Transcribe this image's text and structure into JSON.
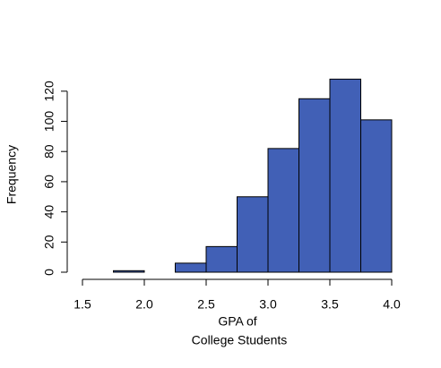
{
  "chart_data": {
    "type": "histogram",
    "xlabel": [
      "GPA of",
      "College Students"
    ],
    "ylabel": "Frequency",
    "bins": [
      1.5,
      1.75,
      2.0,
      2.25,
      2.5,
      2.75,
      3.0,
      3.25,
      3.5,
      3.75,
      4.0
    ],
    "values": [
      0,
      1,
      0,
      6,
      17,
      50,
      82,
      115,
      128,
      101
    ],
    "color": "#4160b6",
    "xlim": [
      1.5,
      4.0
    ],
    "xticks": [
      1.5,
      {
        "value": 2.0,
        "label": "2.0"
      },
      2.5,
      {
        "value": 3.0,
        "label": "3.0"
      },
      3.5,
      {
        "value": 4.0,
        "label": "4.0"
      }
    ],
    "ylim": [
      0,
      130
    ],
    "yticks": [
      0,
      20,
      40,
      60,
      80,
      100,
      120
    ]
  }
}
